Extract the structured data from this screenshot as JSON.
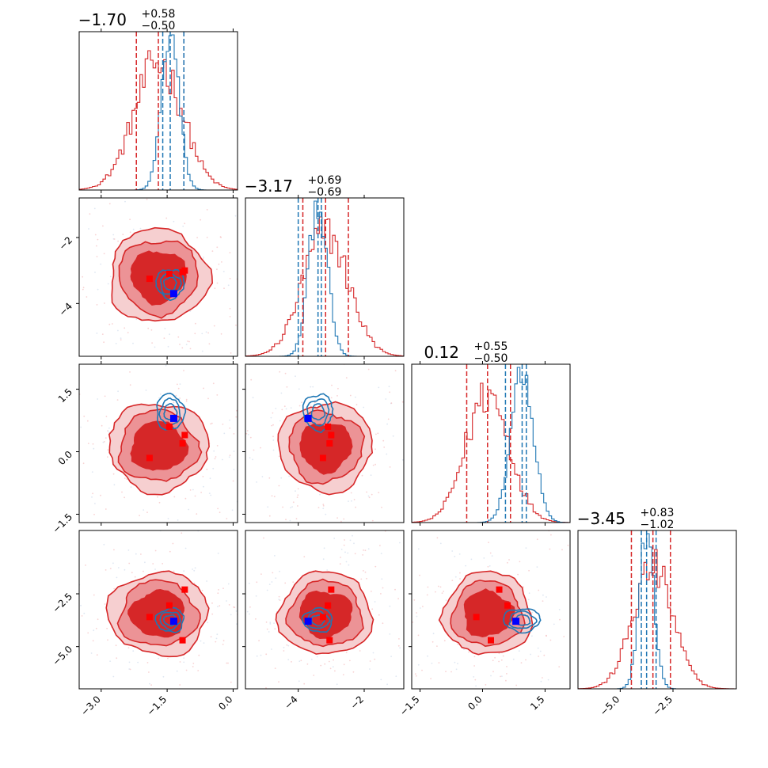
{
  "colors": {
    "red": "#d62728",
    "red_mid": "#ec9396",
    "red_light": "#f6cfd0",
    "blue": "#1f77b4",
    "red_marker": "#ff0000",
    "blue_marker": "#0000ff"
  },
  "chart_data": {
    "type": "corner",
    "parameters": 4,
    "grid": false,
    "ranges": [
      [
        -3.5,
        0.1
      ],
      [
        -5.6,
        -0.8
      ],
      [
        -1.7,
        2.1
      ],
      [
        -7.0,
        0.5
      ]
    ],
    "ticks": [
      {
        "values": [
          -3.0,
          -1.5,
          0.0
        ],
        "labels": [
          "−3.0",
          "−1.5",
          "0.0"
        ]
      },
      {
        "values": [
          -4,
          -2
        ],
        "labels": [
          "−4",
          "−2"
        ]
      },
      {
        "values": [
          -1.5,
          0.0,
          1.5
        ],
        "labels": [
          "−1.5",
          "0.0",
          "1.5"
        ]
      },
      {
        "values": [
          -5.0,
          -2.5
        ],
        "labels": [
          "−5.0",
          "−2.5"
        ]
      }
    ],
    "titles": [
      {
        "median": "−1.70",
        "plus": "+0.58",
        "minus": "−0.50"
      },
      {
        "median": "−3.17",
        "plus": "+0.69",
        "minus": "−0.69"
      },
      {
        "median": "0.12",
        "plus": "+0.55",
        "minus": "−0.50"
      },
      {
        "median": "−3.45",
        "plus": "+0.83",
        "minus": "−1.02"
      }
    ],
    "series": [
      {
        "color": "red",
        "means": [
          -1.7,
          -3.17,
          0.12,
          -3.45
        ],
        "sigmas": [
          0.55,
          0.69,
          0.52,
          0.95
        ],
        "quantiles": [
          [
            -2.2,
            -1.7,
            -1.12
          ],
          [
            -3.86,
            -3.17,
            -2.48
          ],
          [
            -0.38,
            0.12,
            0.67
          ],
          [
            -4.47,
            -3.45,
            -2.62
          ]
        ]
      },
      {
        "color": "blue",
        "means": [
          -1.43,
          -3.4,
          0.95,
          -3.75
        ],
        "sigmas": [
          0.2,
          0.28,
          0.27,
          0.35
        ],
        "quantiles": [
          [
            -1.6,
            -1.43,
            -1.12
          ],
          [
            -4.0,
            -3.4,
            -3.3
          ],
          [
            0.55,
            0.95,
            1.05
          ],
          [
            -4.0,
            -3.75,
            -3.3
          ]
        ]
      }
    ],
    "red_markers": [
      [
        -1.9,
        -3.25,
        -0.15,
        -3.6
      ],
      [
        -1.45,
        -3.1,
        0.6,
        -3.05
      ],
      [
        -1.1,
        -3.0,
        0.4,
        -2.3
      ],
      [
        -1.15,
        -3.05,
        0.2,
        -4.7
      ]
    ],
    "blue_marker": [
      -1.35,
      -3.7,
      0.8,
      -3.8
    ]
  }
}
